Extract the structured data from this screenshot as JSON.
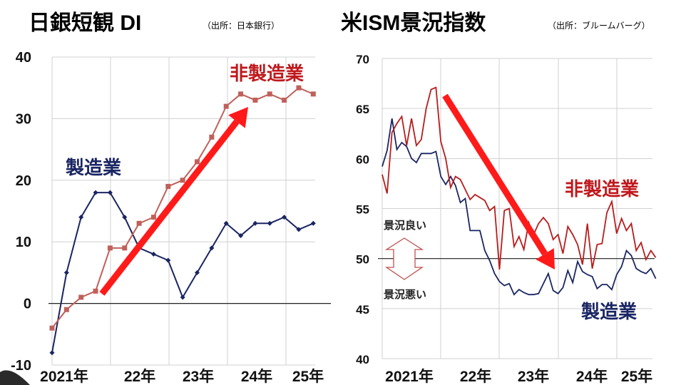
{
  "colors": {
    "manufacturing": "#1a2563",
    "nonmanufacturing_left": "#c0605a",
    "nonmanufacturing_right": "#b81c1c",
    "arrow": "#ff1a1a",
    "grid": "#d0d0d0",
    "label_red": "#c0181c",
    "label_blue": "#1a2563"
  },
  "chart_data": [
    {
      "type": "line",
      "title": "日銀短観 DI",
      "source": "（出所：日本銀行）",
      "ylim": [
        -10,
        40
      ],
      "yticks": [
        "40",
        "30",
        "20",
        "10",
        "0",
        "-10"
      ],
      "ytick_values": [
        40,
        30,
        20,
        10,
        0,
        -10
      ],
      "xticks": [
        "2021年",
        "22年",
        "23年",
        "24年",
        "25年"
      ],
      "frequency": "quarterly",
      "x": [
        "2020Q4",
        "2021Q1",
        "2021Q2",
        "2021Q3",
        "2021Q4",
        "2022Q1",
        "2022Q2",
        "2022Q3",
        "2022Q4",
        "2023Q1",
        "2023Q2",
        "2023Q3",
        "2023Q4",
        "2024Q1",
        "2024Q2",
        "2024Q3",
        "2024Q4",
        "2025Q1",
        "2025Q2"
      ],
      "series": [
        {
          "name": "製造業",
          "values": [
            -8,
            5,
            14,
            18,
            18,
            14,
            9,
            8,
            7,
            1,
            5,
            9,
            13,
            11,
            13,
            13,
            14,
            12,
            13
          ]
        },
        {
          "name": "非製造業",
          "values": [
            -4,
            -1,
            1,
            2,
            9,
            9,
            13,
            14,
            19,
            20,
            23,
            27,
            32,
            34,
            33,
            34,
            33,
            35,
            34
          ]
        }
      ],
      "annotations": [
        "upward trend arrow for 非製造業"
      ],
      "grid": true
    },
    {
      "type": "line",
      "title": "米ISM景況指数",
      "source": "（出所：ブルームバーグ）",
      "ylim": [
        40,
        70
      ],
      "yticks": [
        "70",
        "65",
        "60",
        "55",
        "50",
        "45",
        "40"
      ],
      "ytick_values": [
        70,
        65,
        60,
        55,
        50,
        45,
        40
      ],
      "xticks": [
        "2021年",
        "22年",
        "23年",
        "24年",
        "25年"
      ],
      "frequency": "monthly",
      "reference_line": 50,
      "notes": {
        "good": "景況良い",
        "bad": "景況悪い"
      },
      "series": [
        {
          "name": "製造業",
          "values": [
            59.2,
            60.8,
            64.0,
            60.9,
            61.6,
            61.2,
            60.0,
            59.6,
            60.5,
            60.5,
            60.5,
            60.7,
            58.2,
            57.4,
            58.2,
            57.3,
            55.6,
            56.0,
            52.8,
            52.8,
            52.8,
            50.8,
            49.8,
            48.5,
            47.7,
            47.3,
            47.5,
            46.4,
            46.9,
            46.6,
            46.4,
            46.4,
            46.5,
            47.5,
            48.5,
            46.8,
            46.5,
            47.1,
            48.8,
            47.6,
            49.7,
            48.7,
            48.4,
            48.2,
            47.0,
            47.4,
            47.4,
            46.9,
            48.4,
            49.2,
            50.8,
            50.3,
            49.0,
            48.7,
            48.5,
            49.0,
            48.0
          ]
        },
        {
          "name": "非製造業",
          "values": [
            58.4,
            56.5,
            62.6,
            63.5,
            64.2,
            61.3,
            64.0,
            61.3,
            61.9,
            65.0,
            66.9,
            67.1,
            61.7,
            60.0,
            57.1,
            58.2,
            57.9,
            56.9,
            55.9,
            56.4,
            56.1,
            55.8,
            54.8,
            55.2,
            48.9,
            54.8,
            55.0,
            51.2,
            52.2,
            50.9,
            53.6,
            52.4,
            53.5,
            54.1,
            53.5,
            51.9,
            52.4,
            50.5,
            53.2,
            52.4,
            51.4,
            49.4,
            53.5,
            49.0,
            51.4,
            51.5,
            54.6,
            55.7,
            52.5,
            54.0,
            52.8,
            53.5,
            50.8,
            51.6,
            49.9,
            50.8,
            50.1
          ]
        }
      ],
      "annotations": [
        "downward trend arrow"
      ],
      "grid": true
    }
  ]
}
